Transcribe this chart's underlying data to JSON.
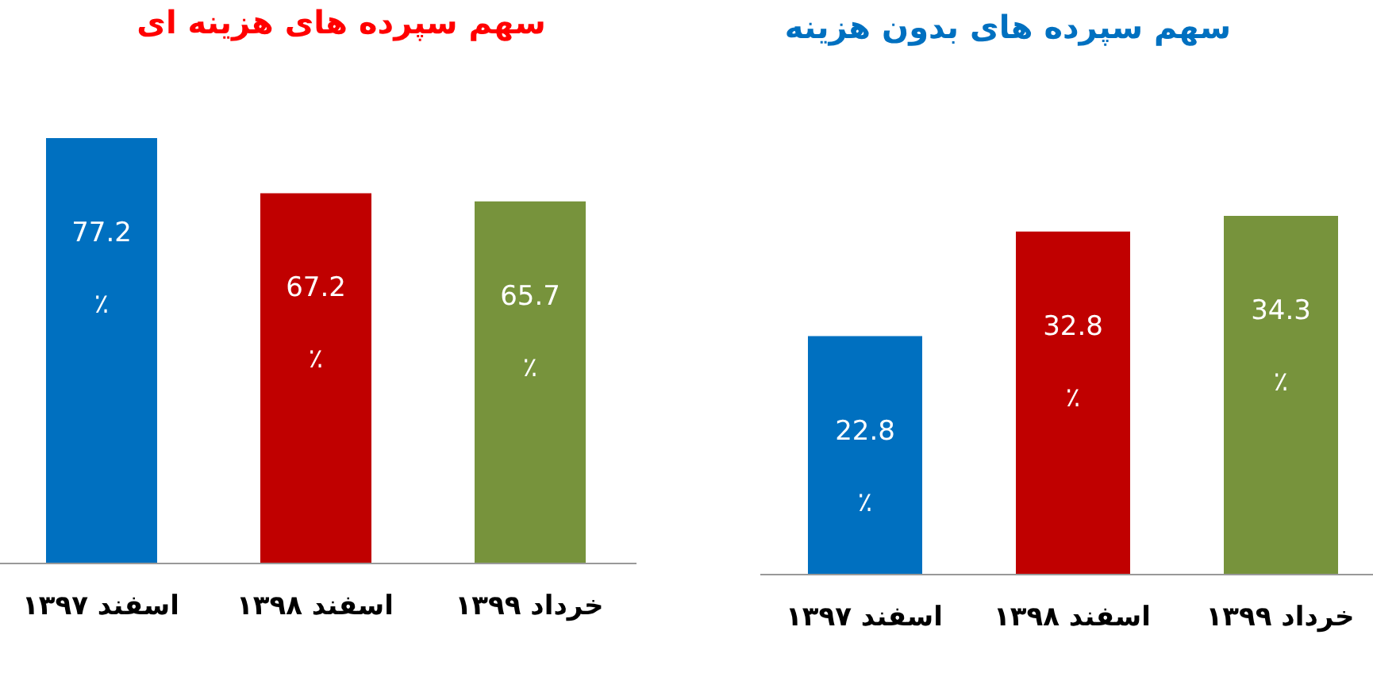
{
  "chart_data": [
    {
      "type": "bar",
      "title": "سهم سپرده های هزینه ای",
      "categories": [
        "اسفند ۱۳۹۷",
        "اسفند ۱۳۹۸",
        "خرداد ۱۳۹۹"
      ],
      "values": [
        77.2,
        67.2,
        65.7
      ],
      "colors": [
        "#0070c0",
        "#c00000",
        "#77933c"
      ],
      "data_labels": true,
      "annotations": [
        "٪",
        "٪",
        "٪"
      ]
    },
    {
      "type": "bar",
      "title": "سهم سپرده های بدون هزینه",
      "categories": [
        "اسفند ۱۳۹۷",
        "اسفند ۱۳۹۸",
        "خرداد ۱۳۹۹"
      ],
      "values": [
        22.8,
        32.8,
        34.3
      ],
      "colors": [
        "#0070c0",
        "#c00000",
        "#77933c"
      ],
      "data_labels": true,
      "annotations": [
        "٪",
        "٪",
        "٪"
      ]
    }
  ]
}
